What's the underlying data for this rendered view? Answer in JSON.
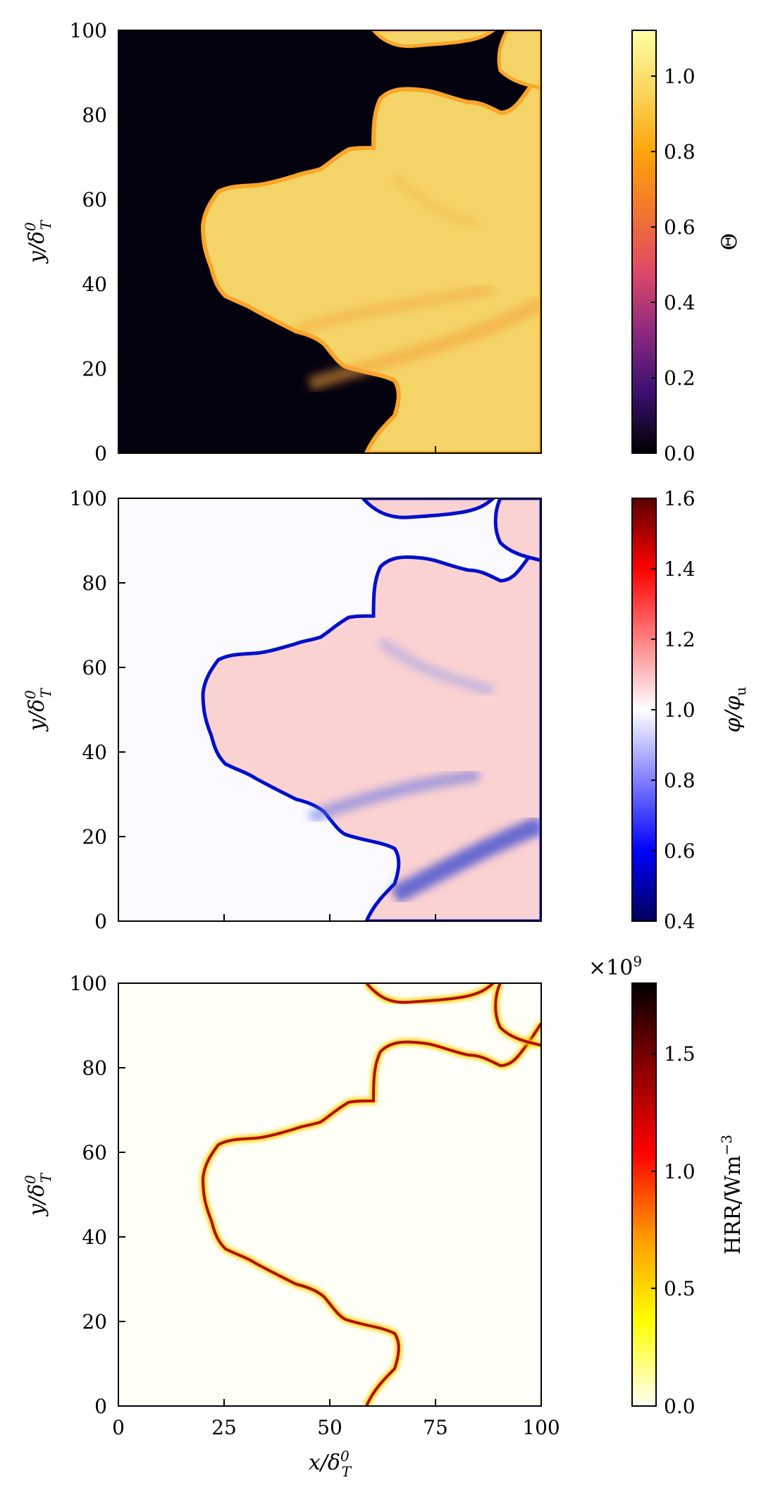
{
  "chart_data": [
    {
      "type": "heatmap",
      "panel": "top",
      "ylabel": "y/δ_T^0",
      "xlim": [
        0,
        100
      ],
      "ylim": [
        0,
        100
      ],
      "yticks": [
        0,
        20,
        40,
        60,
        80,
        100
      ],
      "xticks": [
        0,
        25,
        50,
        75,
        100
      ],
      "colorbar": {
        "label": "Θ",
        "range": [
          0.0,
          1.12
        ],
        "ticks": [
          "0.0",
          "0.2",
          "0.4",
          "0.6",
          "0.8",
          "1.0"
        ],
        "tick_values": [
          0.0,
          0.2,
          0.4,
          0.6,
          0.8,
          1.0
        ],
        "colormap": [
          "#000004",
          "#3b0f70",
          "#8c2981",
          "#de4968",
          "#f3762c",
          "#fca50a",
          "#fbd65c",
          "#fcffa4"
        ]
      }
    },
    {
      "type": "heatmap",
      "panel": "middle",
      "ylabel": "y/δ_T^0",
      "xlim": [
        0,
        100
      ],
      "ylim": [
        0,
        100
      ],
      "yticks": [
        0,
        20,
        40,
        60,
        80,
        100
      ],
      "xticks": [
        0,
        25,
        50,
        75,
        100
      ],
      "colorbar": {
        "label": "φ/φ_u",
        "range": [
          0.4,
          1.6
        ],
        "ticks": [
          "0.4",
          "0.6",
          "0.8",
          "1.0",
          "1.2",
          "1.4",
          "1.6"
        ],
        "tick_values": [
          0.4,
          0.6,
          0.8,
          1.0,
          1.2,
          1.4,
          1.6
        ],
        "colormap": [
          "#00005a",
          "#0000ff",
          "#8080ff",
          "#ffffff",
          "#ff8080",
          "#ff0000",
          "#5a0000"
        ]
      }
    },
    {
      "type": "heatmap",
      "panel": "bottom",
      "xlabel": "x/δ_T^0",
      "ylabel": "y/δ_T^0",
      "xlim": [
        0,
        100
      ],
      "ylim": [
        0,
        100
      ],
      "yticks": [
        0,
        20,
        40,
        60,
        80,
        100
      ],
      "xticks": [
        0,
        25,
        50,
        75,
        100
      ],
      "xtick_labels": [
        "0",
        "25",
        "50",
        "75",
        "100"
      ],
      "colorbar": {
        "label": "HRR/Wm^-3",
        "multiplier": "×10^9",
        "range": [
          0.0,
          1.8
        ],
        "ticks": [
          "0.0",
          "0.5",
          "1.0",
          "1.5"
        ],
        "tick_values": [
          0.0,
          0.5,
          1.0,
          1.5
        ],
        "colormap": [
          "#fffff7",
          "#ffff00",
          "#ff9a00",
          "#ff0000",
          "#8b0000",
          "#000000"
        ]
      }
    }
  ],
  "y_tick_labels": [
    "0",
    "20",
    "40",
    "60",
    "80",
    "100"
  ],
  "labels": {
    "y_main": "y/δ",
    "x_main": "x/δ",
    "sub_T": "T",
    "sup_0": "0",
    "theta": "Θ",
    "phi_label_a": "φ/φ",
    "phi_label_sub": "u",
    "hrr_label": "HRR/Wm",
    "hrr_sup": "−3",
    "mult_main": "×10",
    "mult_sup": "9"
  }
}
